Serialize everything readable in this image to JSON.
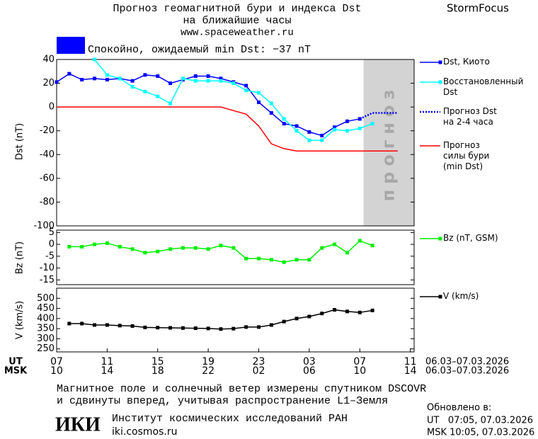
{
  "header": {
    "title_lines": [
      "Прогноз геомагнитной бури и индекса Dst",
      "на ближайшие часы"
    ],
    "url": "www.spaceweather.ru",
    "brand": "StormFocus"
  },
  "status": {
    "text": "Спокойно, ожидаемый min Dst: −37 nT",
    "color": "#0000ff"
  },
  "chart_data": [
    {
      "type": "line",
      "y_label": "Dst (nT)",
      "x": [
        0,
        1,
        2,
        3,
        4,
        5,
        6,
        7,
        8,
        9,
        10,
        11,
        12,
        13,
        14,
        15,
        16,
        17,
        18,
        19,
        20,
        21,
        22,
        23,
        24,
        25,
        26,
        27
      ],
      "xlim": [
        0,
        28.3
      ],
      "ylim": [
        -100,
        40
      ],
      "yticks": [
        40,
        20,
        0,
        -20,
        -40,
        -60,
        -80,
        -100
      ],
      "forecast_region": [
        24.3,
        28.3
      ],
      "forecast_label": "прогноз",
      "series": [
        {
          "name": "Dst, Киото",
          "color": "#0000ff",
          "marker": "square",
          "style": "solid",
          "values": [
            21,
            28,
            23,
            24,
            23,
            24,
            22,
            27,
            26,
            20,
            23,
            26,
            26,
            24,
            21,
            18,
            4,
            -5,
            -14,
            -16,
            -21,
            -24,
            -17,
            -12,
            -10,
            null,
            null,
            null
          ]
        },
        {
          "name": "Восстановленный\nDst",
          "color": "#00ffff",
          "marker": "square",
          "style": "solid",
          "values": [
            null,
            null,
            null,
            40,
            27,
            24,
            17,
            13,
            9,
            3,
            24,
            22,
            22,
            22,
            20,
            14,
            12,
            3,
            -10,
            -20,
            -28,
            -28,
            -19,
            -20,
            -18,
            -14,
            null,
            null
          ]
        },
        {
          "name": "Прогноз Dst\nна 2-4 часа",
          "color": "#0000ff",
          "marker": "none",
          "style": "dotted",
          "values": [
            null,
            null,
            null,
            null,
            null,
            null,
            null,
            null,
            null,
            null,
            null,
            null,
            null,
            null,
            null,
            null,
            null,
            null,
            null,
            null,
            null,
            null,
            null,
            null,
            -10,
            -5,
            -5,
            -5
          ]
        },
        {
          "name": "Прогноз\nсилы бури\n(min Dst)",
          "color": "#ff0000",
          "marker": "none",
          "style": "solid",
          "values": [
            0,
            0,
            0,
            0,
            0,
            0,
            0,
            0,
            0,
            0,
            0,
            0,
            0,
            0,
            -3,
            -6,
            -16,
            -31,
            -35,
            -37,
            -37,
            -37,
            -37,
            -37,
            -37,
            -37,
            -37,
            -37
          ]
        }
      ]
    },
    {
      "type": "line",
      "y_label": "Bz (nT)",
      "x": [
        0,
        1,
        2,
        3,
        4,
        5,
        6,
        7,
        8,
        9,
        10,
        11,
        12,
        13,
        14,
        15,
        16,
        17,
        18,
        19,
        20,
        21,
        22,
        23,
        24,
        25
      ],
      "xlim": [
        0,
        28.3
      ],
      "ylim": [
        -17,
        6
      ],
      "yticks": [
        5,
        0,
        -5,
        -10,
        -15
      ],
      "series": [
        {
          "name": "Bz (nT, GSM)",
          "color": "#00ee00",
          "marker": "square",
          "style": "solid",
          "values": [
            null,
            -1,
            -1,
            0,
            0.5,
            -1,
            -2,
            -3.5,
            -3,
            -2,
            -1.5,
            -1.5,
            -2,
            -0.5,
            -1.5,
            -6,
            -6,
            -6.5,
            -7.5,
            -6.5,
            -6.5,
            -1.5,
            0,
            -3.5,
            1.5,
            -0.5
          ]
        }
      ]
    },
    {
      "type": "line",
      "y_label": "V (km/s)",
      "x": [
        0,
        1,
        2,
        3,
        4,
        5,
        6,
        7,
        8,
        9,
        10,
        11,
        12,
        13,
        14,
        15,
        16,
        17,
        18,
        19,
        20,
        21,
        22,
        23,
        24,
        25
      ],
      "xlim": [
        0,
        28.3
      ],
      "ylim": [
        235,
        550
      ],
      "yticks": [
        500,
        450,
        400,
        350,
        300,
        250
      ],
      "xticks": [
        {
          "value": 0,
          "label": "07"
        },
        {
          "value": 4,
          "label": "11"
        },
        {
          "value": 8,
          "label": "15"
        },
        {
          "value": 12,
          "label": "19"
        },
        {
          "value": 16,
          "label": "23"
        },
        {
          "value": 20,
          "label": "03"
        },
        {
          "value": 24,
          "label": "07"
        },
        {
          "value": 28,
          "label": "11"
        }
      ],
      "xticks_msk": [
        {
          "value": 0,
          "label": "10"
        },
        {
          "value": 4,
          "label": "14"
        },
        {
          "value": 8,
          "label": "18"
        },
        {
          "value": 12,
          "label": "22"
        },
        {
          "value": 16,
          "label": "02"
        },
        {
          "value": 20,
          "label": "06"
        },
        {
          "value": 24,
          "label": "10"
        },
        {
          "value": 28,
          "label": "14"
        }
      ],
      "x_row_labels": [
        "UT",
        "MSK"
      ],
      "date_range": "06.03–07.03.2026",
      "series": [
        {
          "name": "V (km/s)",
          "color": "#000000",
          "marker": "square",
          "style": "solid",
          "values": [
            null,
            375,
            375,
            368,
            368,
            365,
            363,
            356,
            355,
            354,
            353,
            352,
            351,
            348,
            350,
            358,
            358,
            368,
            385,
            400,
            410,
            425,
            443,
            435,
            430,
            440
          ]
        }
      ]
    }
  ],
  "footer": {
    "note_lines": [
      "Магнитное поле и солнечный ветер измерены спутником DSCOVR",
      "и сдвинуты вперед, учитывая распространение L1–Земля"
    ],
    "logo": "ИКИ",
    "institute": "Институт космических исследований РАН",
    "institute_url": "iki.cosmos.ru",
    "updated_title": "Обновлено в:",
    "updated_ut": "UT   07:05, 07.03.2026",
    "updated_msk": "MSK 10:05, 07.03.2026"
  }
}
